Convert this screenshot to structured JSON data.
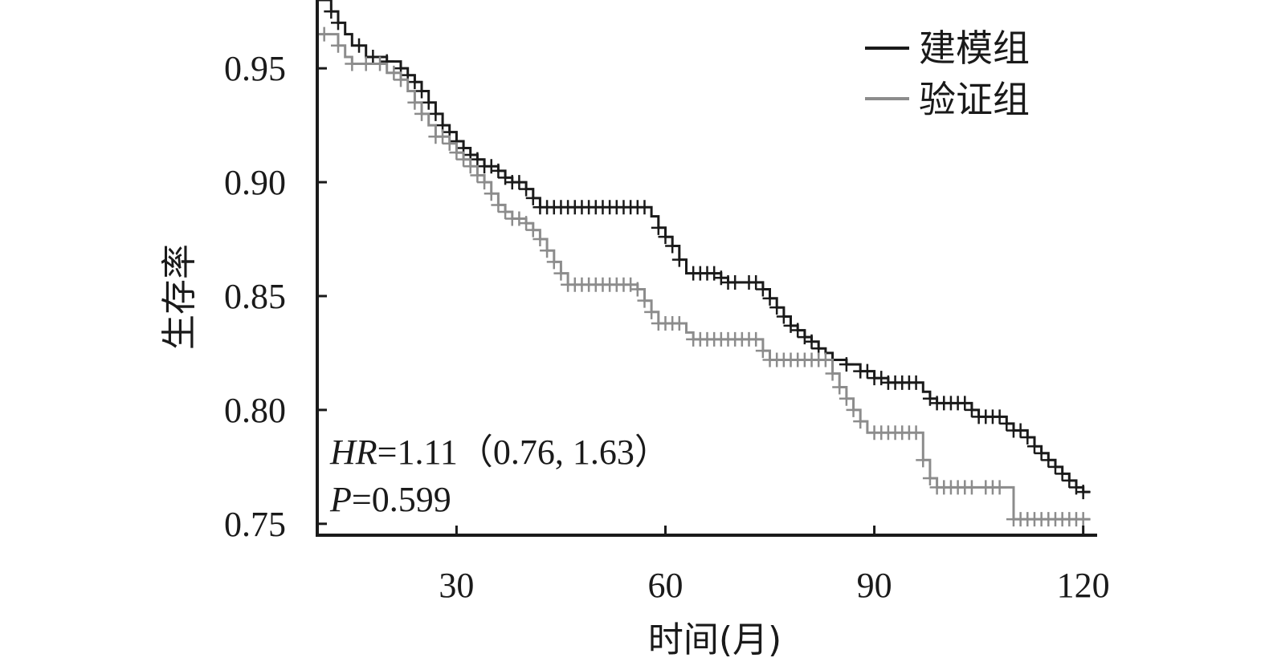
{
  "chart_data": {
    "type": "line",
    "subtype": "kaplan-meier",
    "title": "",
    "xlabel": "时间(月)",
    "ylabel": "生存率",
    "xlim": [
      10,
      122
    ],
    "ylim": [
      0.745,
      0.98
    ],
    "x_ticks": [
      30,
      60,
      90,
      120
    ],
    "x_tick_labels": [
      "30",
      "60",
      "90",
      "120"
    ],
    "y_ticks": [
      0.75,
      0.8,
      0.85,
      0.9,
      0.95
    ],
    "y_tick_labels": [
      "0.75",
      "0.80",
      "0.85",
      "0.90",
      "0.95"
    ],
    "grid": false,
    "legend_position": "top-right",
    "annotations": {
      "hr_label": "HR",
      "hr_value": "=1.11（0.76, 1.63）",
      "p_label": "P",
      "p_value": "=0.599"
    },
    "series": [
      {
        "name": "建模组",
        "color": "#1a1a1a",
        "steps": [
          [
            10,
            0.98
          ],
          [
            12,
            0.975
          ],
          [
            13,
            0.97
          ],
          [
            14,
            0.965
          ],
          [
            15,
            0.96
          ],
          [
            17,
            0.955
          ],
          [
            20,
            0.953
          ],
          [
            22,
            0.95
          ],
          [
            23,
            0.947
          ],
          [
            24,
            0.944
          ],
          [
            25,
            0.94
          ],
          [
            26,
            0.935
          ],
          [
            27,
            0.93
          ],
          [
            28,
            0.925
          ],
          [
            29,
            0.922
          ],
          [
            30,
            0.918
          ],
          [
            31,
            0.915
          ],
          [
            32,
            0.912
          ],
          [
            33,
            0.91
          ],
          [
            34,
            0.907
          ],
          [
            36,
            0.905
          ],
          [
            37,
            0.902
          ],
          [
            38,
            0.9
          ],
          [
            40,
            0.897
          ],
          [
            41,
            0.893
          ],
          [
            42,
            0.889
          ],
          [
            57,
            0.889
          ],
          [
            58,
            0.885
          ],
          [
            59,
            0.88
          ],
          [
            60,
            0.876
          ],
          [
            61,
            0.872
          ],
          [
            62,
            0.866
          ],
          [
            63,
            0.86
          ],
          [
            67,
            0.86
          ],
          [
            68,
            0.858
          ],
          [
            69,
            0.856
          ],
          [
            73,
            0.856
          ],
          [
            74,
            0.853
          ],
          [
            75,
            0.849
          ],
          [
            76,
            0.845
          ],
          [
            77,
            0.841
          ],
          [
            78,
            0.837
          ],
          [
            79,
            0.835
          ],
          [
            80,
            0.832
          ],
          [
            81,
            0.83
          ],
          [
            82,
            0.827
          ],
          [
            83,
            0.825
          ],
          [
            84,
            0.822
          ],
          [
            86,
            0.82
          ],
          [
            88,
            0.817
          ],
          [
            90,
            0.814
          ],
          [
            92,
            0.812
          ],
          [
            96,
            0.812
          ],
          [
            97,
            0.808
          ],
          [
            98,
            0.805
          ],
          [
            99,
            0.803
          ],
          [
            103,
            0.803
          ],
          [
            104,
            0.8
          ],
          [
            105,
            0.797
          ],
          [
            108,
            0.797
          ],
          [
            109,
            0.794
          ],
          [
            110,
            0.791
          ],
          [
            112,
            0.788
          ],
          [
            113,
            0.784
          ],
          [
            114,
            0.781
          ],
          [
            115,
            0.778
          ],
          [
            116,
            0.775
          ],
          [
            117,
            0.772
          ],
          [
            118,
            0.769
          ],
          [
            119,
            0.766
          ],
          [
            120,
            0.764
          ],
          [
            121,
            0.764
          ]
        ],
        "censored_x": [
          12,
          13,
          16,
          18,
          20,
          22,
          23,
          24,
          25,
          26,
          27,
          28,
          29,
          30,
          31,
          32,
          33,
          34,
          35,
          36,
          37,
          38,
          39,
          40,
          41,
          42,
          43,
          44,
          45,
          46,
          47,
          48,
          49,
          50,
          51,
          52,
          53,
          54,
          55,
          56,
          57,
          59,
          60,
          61,
          62,
          64,
          65,
          66,
          67,
          68,
          69,
          70,
          72,
          73,
          74,
          75,
          76,
          77,
          78,
          79,
          80,
          81,
          82,
          84,
          86,
          88,
          89,
          90,
          91,
          92,
          93,
          94,
          95,
          96,
          98,
          99,
          100,
          101,
          102,
          103,
          104,
          105,
          106,
          107,
          108,
          109,
          110,
          111,
          112,
          113,
          114,
          115,
          116,
          117,
          118,
          119,
          120
        ]
      },
      {
        "name": "验证组",
        "color": "#8c8c8c",
        "steps": [
          [
            10,
            0.965
          ],
          [
            13,
            0.96
          ],
          [
            14,
            0.955
          ],
          [
            15,
            0.952
          ],
          [
            19,
            0.952
          ],
          [
            20,
            0.948
          ],
          [
            22,
            0.945
          ],
          [
            23,
            0.94
          ],
          [
            24,
            0.935
          ],
          [
            25,
            0.93
          ],
          [
            26,
            0.925
          ],
          [
            27,
            0.92
          ],
          [
            29,
            0.917
          ],
          [
            30,
            0.913
          ],
          [
            31,
            0.91
          ],
          [
            32,
            0.907
          ],
          [
            33,
            0.903
          ],
          [
            34,
            0.9
          ],
          [
            35,
            0.895
          ],
          [
            36,
            0.89
          ],
          [
            37,
            0.887
          ],
          [
            38,
            0.884
          ],
          [
            40,
            0.882
          ],
          [
            41,
            0.879
          ],
          [
            42,
            0.875
          ],
          [
            43,
            0.87
          ],
          [
            44,
            0.865
          ],
          [
            45,
            0.86
          ],
          [
            46,
            0.855
          ],
          [
            56,
            0.853
          ],
          [
            57,
            0.848
          ],
          [
            58,
            0.843
          ],
          [
            59,
            0.838
          ],
          [
            62,
            0.838
          ],
          [
            63,
            0.834
          ],
          [
            64,
            0.831
          ],
          [
            73,
            0.831
          ],
          [
            74,
            0.826
          ],
          [
            75,
            0.822
          ],
          [
            83,
            0.822
          ],
          [
            84,
            0.816
          ],
          [
            85,
            0.81
          ],
          [
            86,
            0.805
          ],
          [
            87,
            0.8
          ],
          [
            88,
            0.795
          ],
          [
            89,
            0.79
          ],
          [
            96,
            0.79
          ],
          [
            97,
            0.778
          ],
          [
            98,
            0.77
          ],
          [
            99,
            0.766
          ],
          [
            109,
            0.766
          ],
          [
            110,
            0.752
          ],
          [
            121,
            0.752
          ]
        ],
        "censored_x": [
          11,
          13,
          15,
          17,
          19,
          21,
          22,
          24,
          25,
          27,
          28,
          29,
          30,
          31,
          32,
          33,
          34,
          35,
          36,
          37,
          38,
          39,
          40,
          41,
          42,
          43,
          44,
          45,
          46,
          47,
          48,
          49,
          50,
          51,
          52,
          53,
          54,
          55,
          56,
          57,
          58,
          59,
          60,
          61,
          62,
          64,
          65,
          66,
          67,
          68,
          69,
          70,
          71,
          72,
          73,
          74,
          75,
          76,
          77,
          78,
          79,
          80,
          81,
          82,
          83,
          84,
          85,
          86,
          87,
          88,
          90,
          91,
          92,
          93,
          94,
          95,
          96,
          97,
          98,
          99,
          100,
          101,
          102,
          103,
          104,
          106,
          107,
          108,
          110,
          111,
          112,
          113,
          114,
          115,
          116,
          117,
          118,
          119,
          120
        ]
      }
    ]
  }
}
